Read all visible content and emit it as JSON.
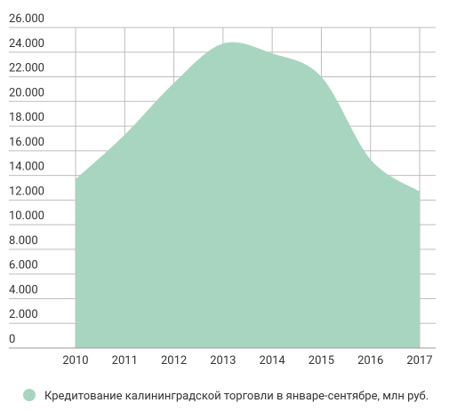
{
  "chart_data": {
    "type": "area",
    "categories": [
      "2010",
      "2011",
      "2012",
      "2013",
      "2014",
      "2015",
      "2016",
      "2017"
    ],
    "series": [
      {
        "name": "Кредитование калининградской торговли в январе-сентябре, млн руб.",
        "color": "#a8d5c0",
        "values": [
          13700,
          17300,
          21500,
          24700,
          23900,
          22000,
          15300,
          12700
        ]
      }
    ],
    "ylim": [
      0,
      26000
    ],
    "yticks": [
      0,
      {
        "value": 2000,
        "label": "2.000"
      },
      {
        "value": 4000,
        "label": "4.000"
      },
      {
        "value": 6000,
        "label": "6.000"
      },
      {
        "value": 8000,
        "label": "8.000"
      },
      {
        "value": 10000,
        "label": "10.000"
      },
      {
        "value": 12000,
        "label": "12.000"
      },
      {
        "value": 14000,
        "label": "14.000"
      },
      {
        "value": 16000,
        "label": "16.000"
      },
      {
        "value": 18000,
        "label": "18.000"
      },
      {
        "value": 20000,
        "label": "20.000"
      },
      {
        "value": 22000,
        "label": "22.000"
      },
      {
        "value": 24000,
        "label": "24.000"
      },
      {
        "value": 26000,
        "label": "26.000"
      }
    ],
    "grid": true,
    "legend": "bottom"
  }
}
